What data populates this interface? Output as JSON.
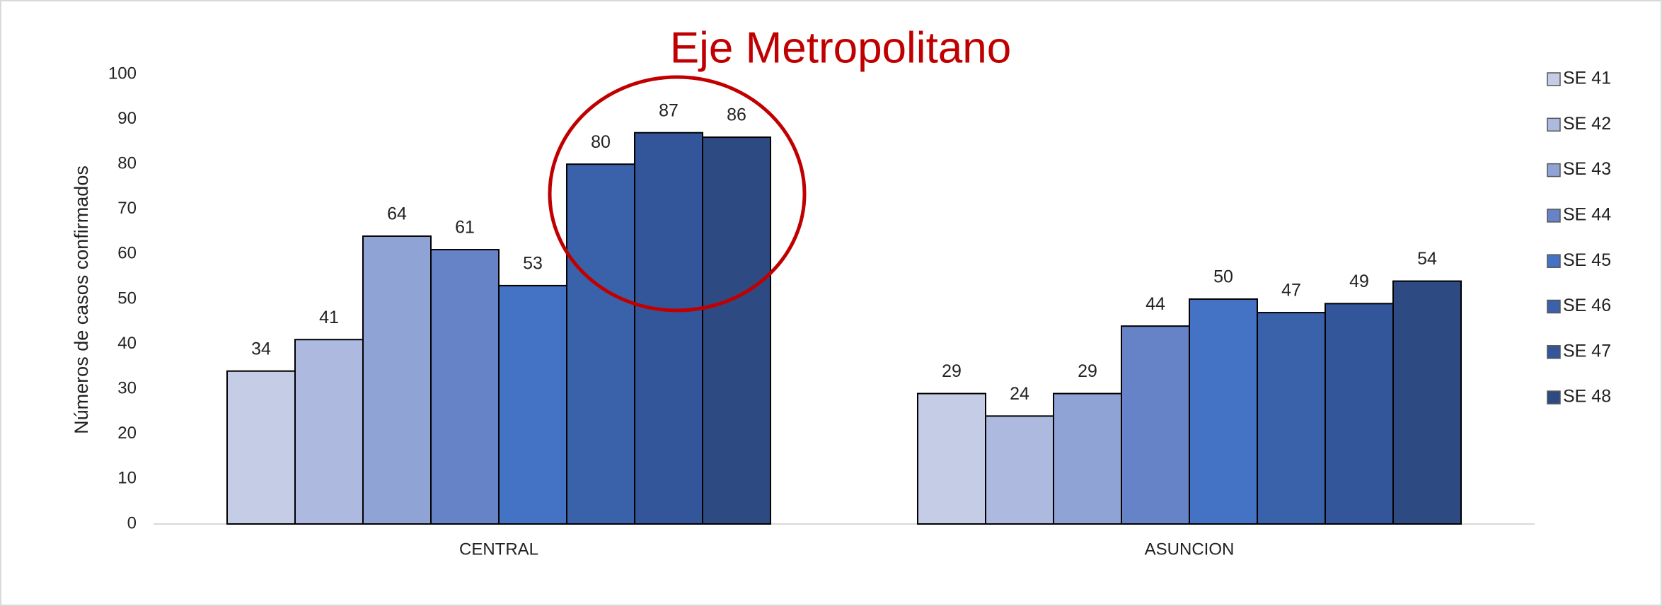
{
  "chart_data": {
    "type": "bar",
    "title": "Eje Metropolitano",
    "y_label": "Números de casos confirmados",
    "categories": [
      "CENTRAL",
      "ASUNCION"
    ],
    "series": [
      {
        "name": "SE 41",
        "color": "#c5cce6",
        "values": [
          34,
          29
        ]
      },
      {
        "name": "SE 42",
        "color": "#adb9df",
        "values": [
          41,
          24
        ]
      },
      {
        "name": "SE 43",
        "color": "#8fa3d4",
        "values": [
          64,
          29
        ]
      },
      {
        "name": "SE 44",
        "color": "#6683c7",
        "values": [
          61,
          44
        ]
      },
      {
        "name": "SE 45",
        "color": "#4472c4",
        "values": [
          53,
          50
        ]
      },
      {
        "name": "SE 46",
        "color": "#3a62ab",
        "values": [
          80,
          47
        ]
      },
      {
        "name": "SE 47",
        "color": "#33569a",
        "values": [
          87,
          49
        ]
      },
      {
        "name": "SE 48",
        "color": "#2e4a82",
        "values": [
          86,
          54
        ]
      }
    ],
    "ylim": [
      0,
      100
    ],
    "yticks": [
      0,
      10,
      20,
      30,
      40,
      50,
      60,
      70,
      80,
      90,
      100
    ],
    "grid": false,
    "legend": "right"
  }
}
